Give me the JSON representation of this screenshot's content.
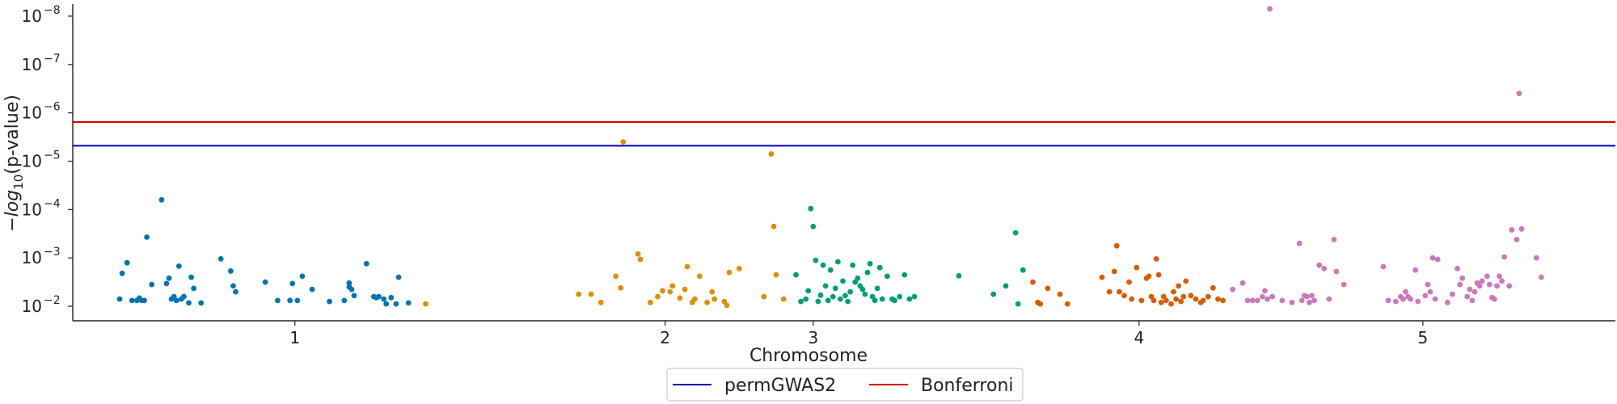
{
  "chart_data": {
    "type": "scatter",
    "title": "",
    "xlabel": "Chromosome",
    "ylabel": "−log₁₀(p-value)",
    "ylabel_parts": {
      "prefix": "−",
      "func": "log",
      "sub": "10",
      "suffix": "(p-value)"
    },
    "x_ticks": [
      {
        "label": "1",
        "pos": 0.55
      },
      {
        "label": "2",
        "pos": 2.05
      },
      {
        "label": "3",
        "pos": 2.65
      },
      {
        "label": "4",
        "pos": 3.97
      },
      {
        "label": "5",
        "pos": 5.12
      }
    ],
    "xlim": [
      -0.35,
      5.9
    ],
    "y_scale": "log (-log10 p)",
    "y_ticks": [
      {
        "base": "10",
        "exp": "−2",
        "value": 2
      },
      {
        "base": "10",
        "exp": "−3",
        "value": 3
      },
      {
        "base": "10",
        "exp": "−4",
        "value": 4
      },
      {
        "base": "10",
        "exp": "−5",
        "value": 5
      },
      {
        "base": "10",
        "exp": "−6",
        "value": 6
      },
      {
        "base": "10",
        "exp": "−7",
        "value": 7
      },
      {
        "base": "10",
        "exp": "−8",
        "value": 8
      }
    ],
    "ylim": [
      1.7,
      8.25
    ],
    "thresholds": [
      {
        "name": "permGWAS2",
        "value": 5.32,
        "color": "#0000bb"
      },
      {
        "name": "Bonferroni",
        "value": 5.81,
        "color": "#dd0000"
      }
    ],
    "legend": {
      "placement": "bottom-center",
      "entries": [
        "permGWAS2",
        "Bonferroni"
      ]
    },
    "series": [
      {
        "chromosome": "1",
        "color": "#0173b2",
        "points": [
          [
            -0.16,
            2.15
          ],
          [
            -0.15,
            2.68
          ],
          [
            -0.13,
            2.9
          ],
          [
            -0.11,
            2.12
          ],
          [
            -0.09,
            2.12
          ],
          [
            -0.08,
            2.17
          ],
          [
            -0.07,
            2.12
          ],
          [
            -0.06,
            2.12
          ],
          [
            -0.05,
            3.43
          ],
          [
            -0.03,
            2.45
          ],
          [
            0.01,
            4.2
          ],
          [
            0.03,
            2.47
          ],
          [
            0.04,
            2.58
          ],
          [
            0.05,
            2.15
          ],
          [
            0.06,
            2.2
          ],
          [
            0.07,
            2.12
          ],
          [
            0.08,
            2.83
          ],
          [
            0.09,
            2.15
          ],
          [
            0.1,
            2.2
          ],
          [
            0.12,
            2.07
          ],
          [
            0.13,
            2.6
          ],
          [
            0.14,
            2.37
          ],
          [
            0.17,
            2.07
          ],
          [
            0.25,
            2.98
          ],
          [
            0.29,
            2.73
          ],
          [
            0.3,
            2.42
          ],
          [
            0.31,
            2.3
          ],
          [
            0.43,
            2.5
          ],
          [
            0.48,
            2.12
          ],
          [
            0.53,
            2.12
          ],
          [
            0.54,
            2.47
          ],
          [
            0.56,
            2.12
          ],
          [
            0.58,
            2.62
          ],
          [
            0.62,
            2.35
          ],
          [
            0.69,
            2.1
          ],
          [
            0.75,
            2.12
          ],
          [
            0.77,
            2.48
          ],
          [
            0.77,
            2.4
          ],
          [
            0.78,
            2.35
          ],
          [
            0.79,
            2.22
          ],
          [
            0.84,
            2.88
          ],
          [
            0.87,
            2.2
          ],
          [
            0.88,
            2.18
          ],
          [
            0.89,
            2.2
          ],
          [
            0.91,
            2.15
          ],
          [
            0.92,
            2.05
          ],
          [
            0.94,
            2.18
          ],
          [
            0.96,
            2.05
          ],
          [
            0.97,
            2.6
          ],
          [
            1.01,
            2.07
          ]
        ]
      },
      {
        "chromosome": "2",
        "color": "#de8f05",
        "points": [
          [
            1.08,
            2.05
          ],
          [
            1.7,
            2.25
          ],
          [
            1.75,
            2.25
          ],
          [
            1.79,
            2.08
          ],
          [
            1.85,
            2.62
          ],
          [
            1.87,
            2.38
          ],
          [
            1.88,
            5.4
          ],
          [
            1.94,
            3.08
          ],
          [
            1.95,
            2.97
          ],
          [
            1.99,
            2.08
          ],
          [
            2.02,
            2.2
          ],
          [
            2.04,
            2.32
          ],
          [
            2.07,
            2.3
          ],
          [
            2.08,
            2.42
          ],
          [
            2.11,
            2.17
          ],
          [
            2.13,
            2.35
          ],
          [
            2.14,
            2.82
          ],
          [
            2.16,
            2.08
          ],
          [
            2.17,
            2.15
          ],
          [
            2.19,
            2.62
          ],
          [
            2.22,
            2.08
          ],
          [
            2.24,
            2.3
          ],
          [
            2.25,
            2.15
          ],
          [
            2.29,
            2.1
          ],
          [
            2.3,
            2.02
          ],
          [
            2.31,
            2.7
          ],
          [
            2.35,
            2.78
          ],
          [
            2.45,
            2.2
          ],
          [
            2.48,
            5.15
          ],
          [
            2.49,
            3.65
          ],
          [
            2.5,
            2.65
          ],
          [
            2.53,
            2.15
          ]
        ]
      },
      {
        "chromosome": "3",
        "color": "#029e73",
        "points": [
          [
            2.58,
            2.65
          ],
          [
            2.6,
            2.1
          ],
          [
            2.62,
            2.15
          ],
          [
            2.63,
            2.32
          ],
          [
            2.64,
            4.02
          ],
          [
            2.65,
            3.65
          ],
          [
            2.66,
            2.95
          ],
          [
            2.67,
            2.1
          ],
          [
            2.68,
            2.23
          ],
          [
            2.69,
            2.85
          ],
          [
            2.7,
            2.42
          ],
          [
            2.71,
            2.12
          ],
          [
            2.72,
            2.75
          ],
          [
            2.73,
            2.2
          ],
          [
            2.74,
            2.37
          ],
          [
            2.75,
            2.92
          ],
          [
            2.76,
            2.15
          ],
          [
            2.77,
            2.52
          ],
          [
            2.78,
            2.22
          ],
          [
            2.79,
            2.1
          ],
          [
            2.8,
            2.3
          ],
          [
            2.81,
            2.85
          ],
          [
            2.82,
            2.5
          ],
          [
            2.83,
            2.58
          ],
          [
            2.84,
            2.42
          ],
          [
            2.85,
            2.35
          ],
          [
            2.86,
            2.25
          ],
          [
            2.87,
            2.7
          ],
          [
            2.88,
            2.88
          ],
          [
            2.89,
            2.2
          ],
          [
            2.9,
            2.12
          ],
          [
            2.91,
            2.37
          ],
          [
            2.92,
            2.8
          ],
          [
            2.93,
            2.15
          ],
          [
            2.95,
            2.62
          ],
          [
            2.97,
            2.15
          ],
          [
            2.98,
            2.12
          ],
          [
            3.0,
            2.2
          ],
          [
            3.02,
            2.65
          ],
          [
            3.04,
            2.15
          ],
          [
            3.06,
            2.2
          ],
          [
            3.24,
            2.63
          ],
          [
            3.38,
            2.25
          ],
          [
            3.43,
            2.42
          ],
          [
            3.47,
            3.52
          ],
          [
            3.48,
            2.05
          ],
          [
            3.5,
            2.75
          ]
        ]
      },
      {
        "chromosome": "4",
        "color": "#d55e00",
        "points": [
          [
            3.54,
            2.5
          ],
          [
            3.56,
            2.08
          ],
          [
            3.57,
            2.05
          ],
          [
            3.6,
            2.37
          ],
          [
            3.65,
            2.25
          ],
          [
            3.68,
            2.05
          ],
          [
            3.82,
            2.6
          ],
          [
            3.85,
            2.3
          ],
          [
            3.87,
            2.72
          ],
          [
            3.88,
            3.25
          ],
          [
            3.89,
            2.3
          ],
          [
            3.91,
            2.22
          ],
          [
            3.93,
            2.5
          ],
          [
            3.94,
            2.15
          ],
          [
            3.96,
            2.8
          ],
          [
            3.98,
            2.12
          ],
          [
            4.0,
            2.58
          ],
          [
            4.01,
            2.62
          ],
          [
            4.02,
            2.2
          ],
          [
            4.03,
            2.12
          ],
          [
            4.04,
            2.98
          ],
          [
            4.05,
            2.65
          ],
          [
            4.06,
            2.08
          ],
          [
            4.07,
            2.2
          ],
          [
            4.08,
            2.12
          ],
          [
            4.1,
            2.05
          ],
          [
            4.11,
            2.3
          ],
          [
            4.12,
            2.15
          ],
          [
            4.13,
            2.42
          ],
          [
            4.14,
            2.1
          ],
          [
            4.15,
            2.2
          ],
          [
            4.16,
            2.52
          ],
          [
            4.18,
            2.22
          ],
          [
            4.2,
            2.15
          ],
          [
            4.22,
            2.08
          ],
          [
            4.23,
            2.12
          ],
          [
            4.25,
            2.2
          ],
          [
            4.27,
            2.38
          ],
          [
            4.29,
            2.15
          ],
          [
            4.31,
            2.12
          ]
        ]
      },
      {
        "chromosome": "5",
        "color": "#cc78bc",
        "points": [
          [
            4.35,
            2.35
          ],
          [
            4.39,
            2.48
          ],
          [
            4.41,
            2.12
          ],
          [
            4.43,
            2.12
          ],
          [
            4.45,
            2.12
          ],
          [
            4.47,
            2.2
          ],
          [
            4.48,
            2.32
          ],
          [
            4.49,
            2.15
          ],
          [
            4.5,
            8.15
          ],
          [
            4.51,
            2.2
          ],
          [
            4.55,
            2.12
          ],
          [
            4.59,
            2.08
          ],
          [
            4.62,
            3.3
          ],
          [
            4.63,
            2.12
          ],
          [
            4.64,
            2.22
          ],
          [
            4.65,
            2.2
          ],
          [
            4.66,
            2.08
          ],
          [
            4.67,
            2.22
          ],
          [
            4.68,
            2.12
          ],
          [
            4.7,
            2.85
          ],
          [
            4.72,
            2.78
          ],
          [
            4.74,
            2.15
          ],
          [
            4.76,
            3.38
          ],
          [
            4.77,
            2.72
          ],
          [
            4.8,
            2.45
          ],
          [
            4.96,
            2.82
          ],
          [
            4.98,
            2.12
          ],
          [
            5.01,
            2.1
          ],
          [
            5.03,
            2.2
          ],
          [
            5.04,
            2.15
          ],
          [
            5.05,
            2.3
          ],
          [
            5.06,
            2.2
          ],
          [
            5.07,
            2.15
          ],
          [
            5.09,
            2.75
          ],
          [
            5.1,
            2.1
          ],
          [
            5.13,
            2.22
          ],
          [
            5.14,
            2.45
          ],
          [
            5.15,
            2.3
          ],
          [
            5.16,
            3.0
          ],
          [
            5.17,
            2.15
          ],
          [
            5.18,
            2.97
          ],
          [
            5.22,
            2.08
          ],
          [
            5.24,
            2.25
          ],
          [
            5.26,
            2.78
          ],
          [
            5.27,
            2.45
          ],
          [
            5.28,
            2.58
          ],
          [
            5.3,
            2.2
          ],
          [
            5.31,
            2.35
          ],
          [
            5.32,
            2.12
          ],
          [
            5.33,
            2.3
          ],
          [
            5.34,
            2.48
          ],
          [
            5.35,
            2.42
          ],
          [
            5.36,
            2.52
          ],
          [
            5.38,
            2.62
          ],
          [
            5.39,
            2.45
          ],
          [
            5.4,
            2.18
          ],
          [
            5.41,
            2.15
          ],
          [
            5.42,
            2.42
          ],
          [
            5.43,
            2.62
          ],
          [
            5.44,
            2.52
          ],
          [
            5.45,
            3.02
          ],
          [
            5.47,
            2.42
          ],
          [
            5.48,
            3.58
          ],
          [
            5.5,
            3.38
          ],
          [
            5.51,
            6.4
          ],
          [
            5.52,
            3.6
          ],
          [
            5.58,
            3.0
          ],
          [
            5.6,
            2.6
          ]
        ]
      }
    ]
  }
}
